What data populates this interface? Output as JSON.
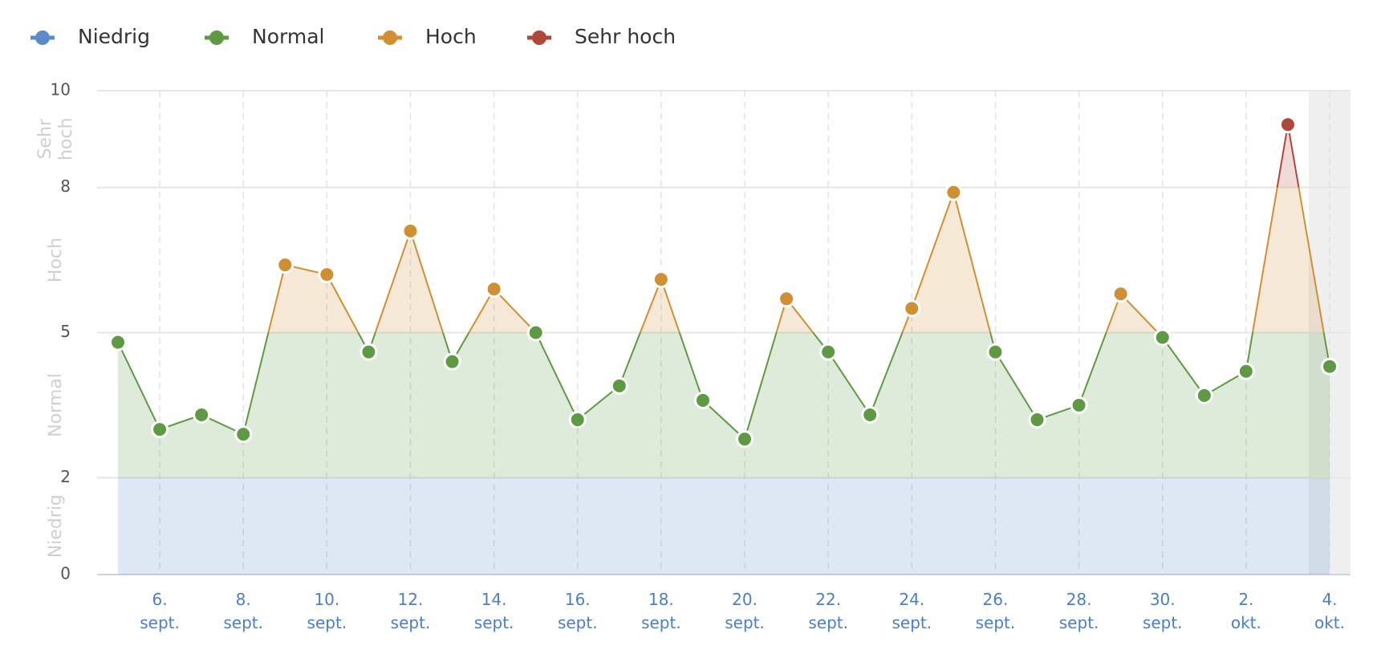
{
  "chart_data": {
    "type": "line",
    "legend": [
      {
        "name": "Niedrig",
        "color": "#5b8bc9"
      },
      {
        "name": "Normal",
        "color": "#5e9a43"
      },
      {
        "name": "Hoch",
        "color": "#d18f34"
      },
      {
        "name": "Sehr hoch",
        "color": "#b0473b"
      }
    ],
    "zones": [
      {
        "label": "Niedrig",
        "from": 0,
        "to": 2,
        "color": "#5b8bc9"
      },
      {
        "label": "Normal",
        "from": 2,
        "to": 5,
        "color": "#5e9a43"
      },
      {
        "label": "Hoch",
        "from": 5,
        "to": 8,
        "color": "#d18f34"
      },
      {
        "label": "Sehr hoch",
        "from": 8,
        "to": 10,
        "color": "#b0473b"
      }
    ],
    "categories": [
      null,
      "6. sept.",
      null,
      "8. sept.",
      null,
      "10. sept.",
      null,
      "12. sept.",
      null,
      "14. sept.",
      null,
      "16. sept.",
      null,
      "18. sept.",
      null,
      "20. sept.",
      null,
      "22. sept.",
      null,
      "24. sept.",
      null,
      "26. sept.",
      null,
      "28. sept.",
      null,
      "30. sept.",
      null,
      "2. okt.",
      null,
      "4. okt."
    ],
    "values": [
      4.8,
      3.0,
      3.3,
      2.9,
      6.4,
      6.2,
      4.6,
      7.1,
      4.4,
      5.9,
      5.0,
      3.2,
      3.9,
      6.1,
      3.6,
      2.8,
      5.7,
      4.6,
      3.3,
      5.5,
      7.9,
      4.6,
      3.2,
      3.5,
      5.8,
      4.9,
      3.7,
      4.2,
      9.3,
      4.3
    ],
    "ylim": [
      0,
      10
    ],
    "yticks": [
      0,
      2,
      5,
      8,
      10
    ],
    "grid": true
  }
}
